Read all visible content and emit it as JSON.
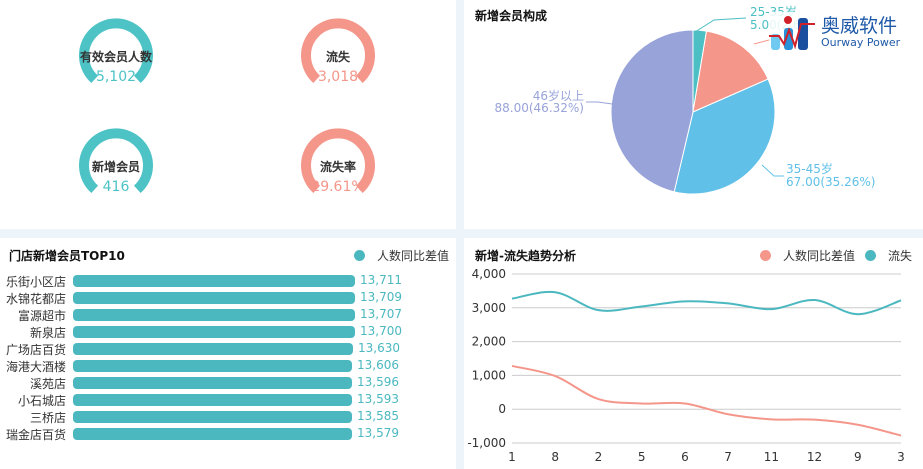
{
  "kpis": [
    {
      "label": "有效会员人数",
      "value": "5,102",
      "color": "#4dc3c6"
    },
    {
      "label": "流失",
      "value": "3,018",
      "color": "#f4968a"
    },
    {
      "label": "新增会员",
      "value": "416",
      "color": "#4dc3c6"
    },
    {
      "label": "流失率",
      "value": "29.61%",
      "color": "#f4968a"
    }
  ],
  "logo": {
    "cn": "奥威软件",
    "en": "Ourway Power"
  },
  "chart_data": [
    {
      "type": "pie",
      "title": "新增会员构成",
      "slices": [
        {
          "label": "25-35岁",
          "value": 5,
          "pct": "2.63%",
          "text": "5.00(2.6",
          "color": "#4bbfc3"
        },
        {
          "label": "",
          "value": 30,
          "pct": "15.79%",
          "color": "#f4968a"
        },
        {
          "label": "35-45岁",
          "value": 67,
          "pct": "35.26%",
          "text": "67.00(35.26%)",
          "color": "#60c0e8"
        },
        {
          "label": "46岁以上",
          "value": 88,
          "pct": "46.32%",
          "text": "88.00(46.32%)",
          "color": "#98a3d9"
        }
      ]
    },
    {
      "type": "bar",
      "orientation": "horizontal",
      "title": "门店新增会员TOP10",
      "legend": "人数同比差值",
      "color": "#4bb8c0",
      "categories": [
        "乐街小区店",
        "水锦花都店",
        "富源超市",
        "新泉店",
        "广场店百货",
        "海港大酒楼",
        "溪苑店",
        "小石城店",
        "三桥店",
        "瑞金店百货"
      ],
      "values": [
        13711,
        13709,
        13707,
        13700,
        13630,
        13606,
        13596,
        13593,
        13585,
        13579
      ],
      "labels": [
        "13,711",
        "13,709",
        "13,707",
        "13,700",
        "13,630",
        "13,606",
        "13,596",
        "13,593",
        "13,585",
        "13,579"
      ]
    },
    {
      "type": "line",
      "title": "新增-流失趋势分析",
      "legend_position": "top-right",
      "grid": true,
      "categories": [
        "1",
        "8",
        "2",
        "5",
        "6",
        "7",
        "11",
        "12",
        "9",
        "3"
      ],
      "ylim": [
        -1000,
        4000
      ],
      "yticks": [
        "4,000",
        "3,000",
        "2,000",
        "1,000",
        "0",
        "-1,000"
      ],
      "series": [
        {
          "name": "人数同比差值",
          "color": "#f4968a",
          "values": [
            1280,
            980,
            300,
            170,
            170,
            -150,
            -300,
            -310,
            -460,
            -780
          ]
        },
        {
          "name": "流失",
          "color": "#4bb8c0",
          "values": [
            3270,
            3460,
            2930,
            3040,
            3190,
            3130,
            2960,
            3230,
            2810,
            3220
          ]
        }
      ]
    }
  ]
}
